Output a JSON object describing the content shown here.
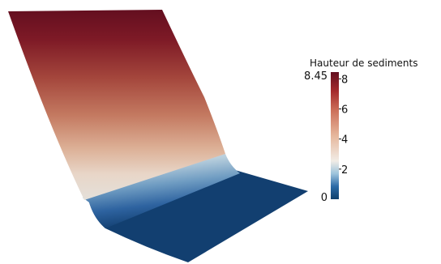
{
  "colorbar": {
    "title": "Hauteur de sediments",
    "max_label": "8.45",
    "min_label": "0",
    "range": [
      0,
      8.45
    ],
    "ticks": [
      "8",
      "6",
      "4",
      "2"
    ],
    "tick_values": [
      8,
      6,
      4,
      2
    ],
    "colormap": [
      "#0e3f6d",
      "#2b6aa6",
      "#9cc3dc",
      "#f1ece6",
      "#ecc3a8",
      "#cf7a62",
      "#a52a2c",
      "#630f1f"
    ]
  },
  "surface": {
    "colormap": "blue-white-red diverging"
  }
}
